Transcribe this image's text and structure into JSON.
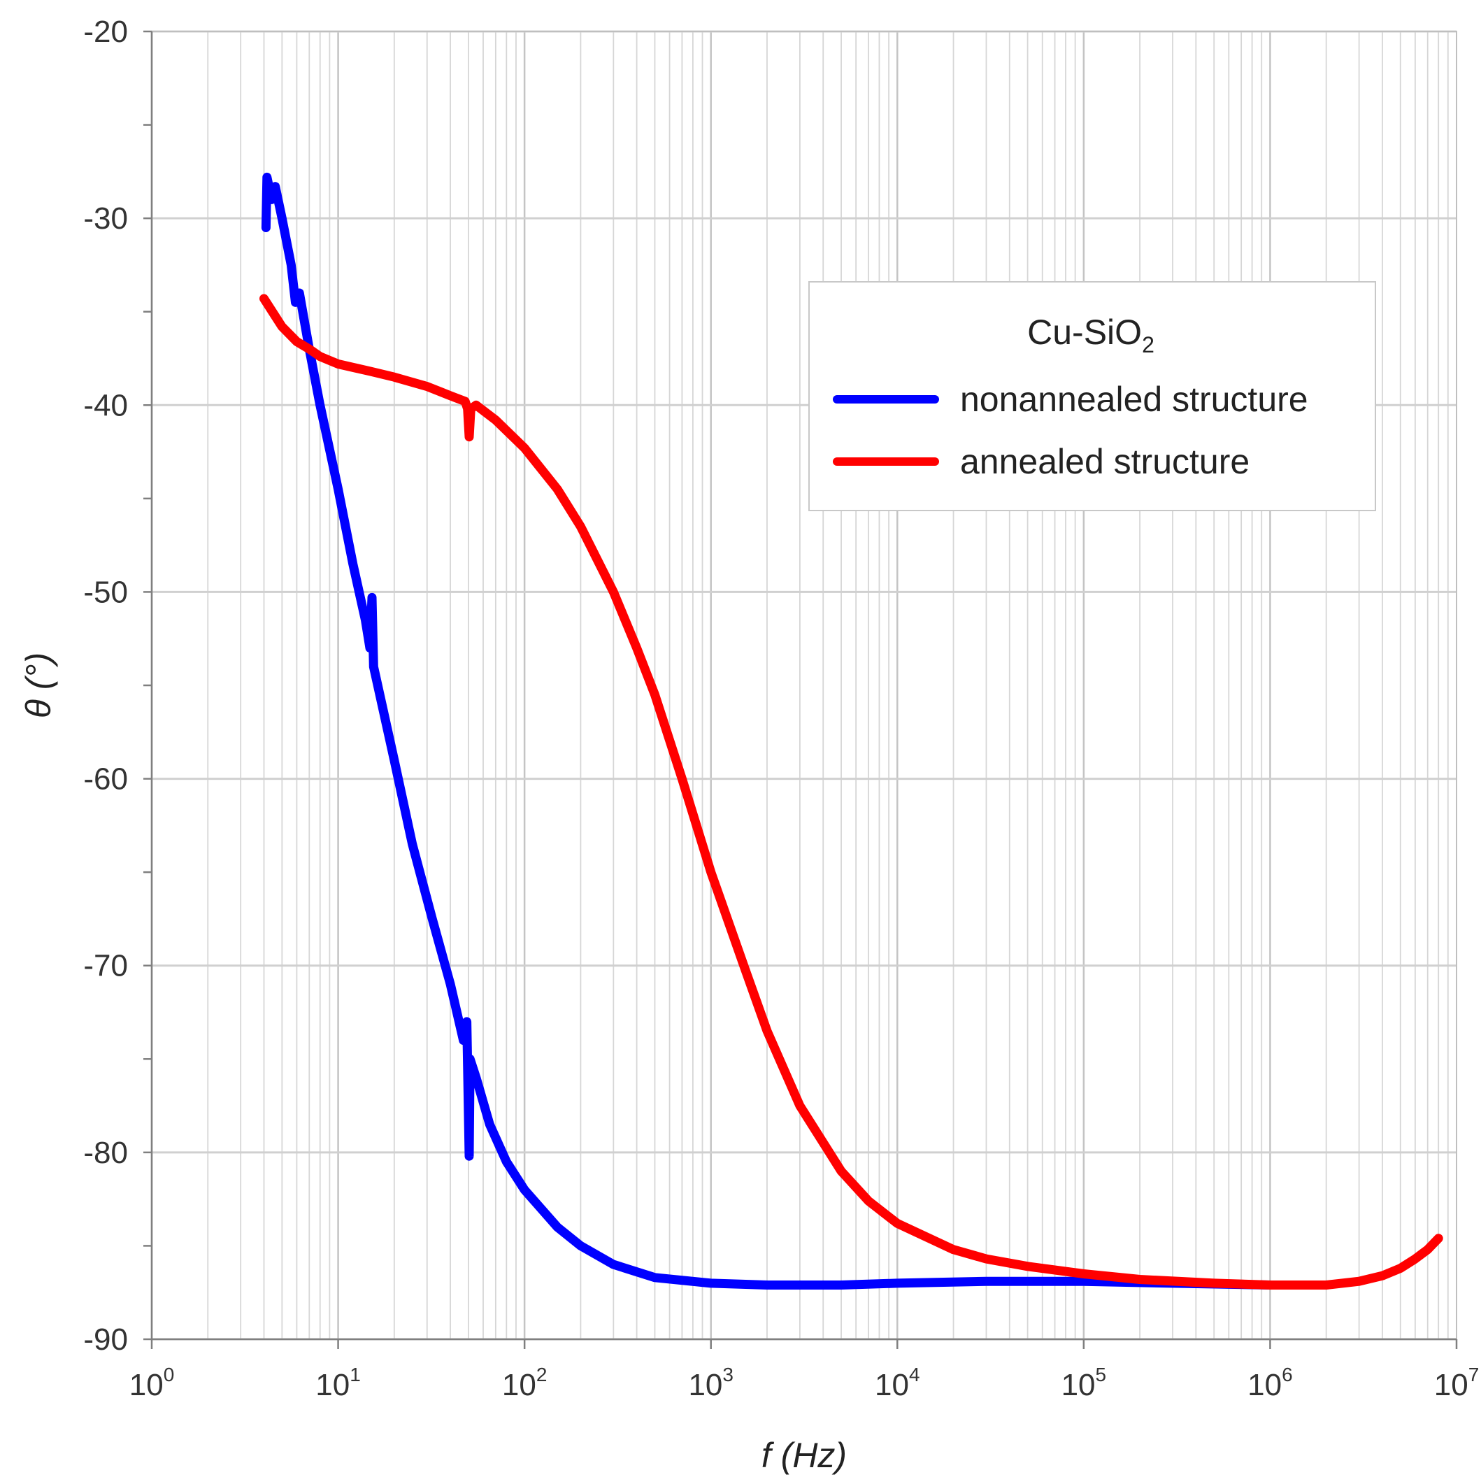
{
  "chart_data": {
    "type": "line",
    "xscale": "log",
    "xlabel": "f (Hz)",
    "ylabel": "θ (°)",
    "xlim": [
      1,
      10000000
    ],
    "ylim": [
      -90,
      -20
    ],
    "x_ticks": [
      {
        "base": "10",
        "exp": "0"
      },
      {
        "base": "10",
        "exp": "1"
      },
      {
        "base": "10",
        "exp": "2"
      },
      {
        "base": "10",
        "exp": "3"
      },
      {
        "base": "10",
        "exp": "4"
      },
      {
        "base": "10",
        "exp": "5"
      },
      {
        "base": "10",
        "exp": "6"
      },
      {
        "base": "10",
        "exp": "7"
      }
    ],
    "y_ticks": [
      "-20",
      "-30",
      "-40",
      "-50",
      "-60",
      "-70",
      "-80",
      "-90"
    ],
    "grid": true,
    "legend": {
      "title_main": "Cu-SiO",
      "title_sub": "2",
      "position": "top-right"
    },
    "series": [
      {
        "name": "nonannealed structure",
        "color": "#0000ff",
        "points": [
          [
            4.1,
            -30.5
          ],
          [
            4.15,
            -27.8
          ],
          [
            4.4,
            -29.0
          ],
          [
            4.6,
            -28.3
          ],
          [
            5.0,
            -30.0
          ],
          [
            5.6,
            -32.5
          ],
          [
            5.9,
            -34.5
          ],
          [
            6.2,
            -34.0
          ],
          [
            7.0,
            -37.0
          ],
          [
            8.0,
            -40.0
          ],
          [
            10.0,
            -44.5
          ],
          [
            12.0,
            -48.5
          ],
          [
            14.0,
            -51.5
          ],
          [
            14.8,
            -53.0
          ],
          [
            15.2,
            -50.3
          ],
          [
            15.5,
            -54.0
          ],
          [
            20.0,
            -59.0
          ],
          [
            25.0,
            -63.5
          ],
          [
            32.0,
            -67.5
          ],
          [
            40.0,
            -71.0
          ],
          [
            47.0,
            -74.0
          ],
          [
            49.0,
            -73.0
          ],
          [
            50.5,
            -80.2
          ],
          [
            51.0,
            -75.0
          ],
          [
            55.0,
            -76.0
          ],
          [
            65.0,
            -78.5
          ],
          [
            80.0,
            -80.5
          ],
          [
            100.0,
            -82.0
          ],
          [
            150.0,
            -84.0
          ],
          [
            200.0,
            -85.0
          ],
          [
            300.0,
            -86.0
          ],
          [
            500.0,
            -86.7
          ],
          [
            1000.0,
            -87.0
          ],
          [
            2000.0,
            -87.1
          ],
          [
            5000.0,
            -87.1
          ],
          [
            10000.0,
            -87.0
          ],
          [
            30000.0,
            -86.9
          ],
          [
            100000.0,
            -86.9
          ],
          [
            300000.0,
            -87.0
          ],
          [
            1000000.0,
            -87.1
          ],
          [
            1500000.0,
            -87.1
          ]
        ]
      },
      {
        "name": "annealed structure",
        "color": "#ff0000",
        "points": [
          [
            4.0,
            -34.3
          ],
          [
            5.0,
            -35.8
          ],
          [
            6.0,
            -36.6
          ],
          [
            7.0,
            -37.0
          ],
          [
            8.0,
            -37.4
          ],
          [
            10.0,
            -37.8
          ],
          [
            15.0,
            -38.2
          ],
          [
            20.0,
            -38.5
          ],
          [
            30.0,
            -39.0
          ],
          [
            40.0,
            -39.5
          ],
          [
            48.0,
            -39.8
          ],
          [
            49.5,
            -40.2
          ],
          [
            50.5,
            -41.7
          ],
          [
            51.5,
            -40.2
          ],
          [
            55.0,
            -40.0
          ],
          [
            70.0,
            -40.8
          ],
          [
            100.0,
            -42.3
          ],
          [
            150.0,
            -44.5
          ],
          [
            200.0,
            -46.5
          ],
          [
            300.0,
            -50.0
          ],
          [
            400.0,
            -53.0
          ],
          [
            500.0,
            -55.5
          ],
          [
            700.0,
            -60.0
          ],
          [
            1000.0,
            -65.0
          ],
          [
            1500.0,
            -70.0
          ],
          [
            2000.0,
            -73.5
          ],
          [
            3000.0,
            -77.5
          ],
          [
            5000.0,
            -81.0
          ],
          [
            7000.0,
            -82.6
          ],
          [
            10000.0,
            -83.8
          ],
          [
            20000.0,
            -85.2
          ],
          [
            30000.0,
            -85.7
          ],
          [
            50000.0,
            -86.1
          ],
          [
            100000.0,
            -86.5
          ],
          [
            200000.0,
            -86.8
          ],
          [
            500000.0,
            -87.0
          ],
          [
            1000000.0,
            -87.1
          ],
          [
            2000000.0,
            -87.1
          ],
          [
            3000000.0,
            -86.9
          ],
          [
            4000000.0,
            -86.6
          ],
          [
            5000000.0,
            -86.2
          ],
          [
            6000000.0,
            -85.7
          ],
          [
            7000000.0,
            -85.2
          ],
          [
            8000000.0,
            -84.6
          ]
        ]
      }
    ]
  }
}
